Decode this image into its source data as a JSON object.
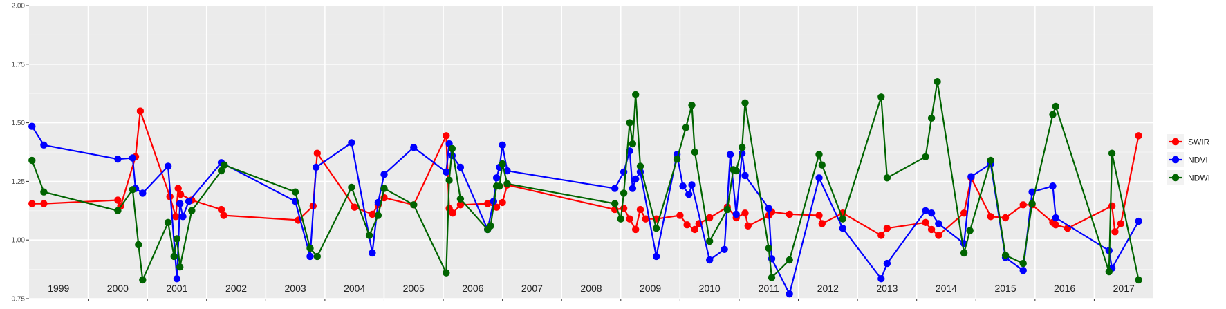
{
  "chart_data": {
    "type": "line",
    "title": "",
    "xlabel": "",
    "ylabel": "",
    "xlim": [
      1998.5,
      2017.5
    ],
    "ylim": [
      0.75,
      2.0
    ],
    "y_ticks": [
      "0.75",
      "1.00",
      "1.25",
      "1.50",
      "1.75",
      "2.00"
    ],
    "year_labels": [
      "1999",
      "2000",
      "2001",
      "2002",
      "2003",
      "2004",
      "2005",
      "2006",
      "2007",
      "2008",
      "2009",
      "2010",
      "2011",
      "2012",
      "2013",
      "2014",
      "2015",
      "2016",
      "2017"
    ],
    "grid": true,
    "legend_position": "right",
    "series": [
      {
        "name": "SWIR",
        "color": "#ff0000",
        "points": [
          [
            1998.55,
            1.155
          ],
          [
            1998.75,
            1.155
          ],
          [
            2000.0,
            1.17
          ],
          [
            2000.05,
            1.145
          ],
          [
            2000.3,
            1.355
          ],
          [
            2000.38,
            1.55
          ],
          [
            2000.88,
            1.185
          ],
          [
            2000.98,
            1.1
          ],
          [
            2001.02,
            1.22
          ],
          [
            2001.06,
            1.195
          ],
          [
            2001.25,
            1.17
          ],
          [
            2001.75,
            1.13
          ],
          [
            2001.79,
            1.105
          ],
          [
            2003.05,
            1.085
          ],
          [
            2003.3,
            1.145
          ],
          [
            2003.37,
            1.37
          ],
          [
            2004.0,
            1.14
          ],
          [
            2004.3,
            1.11
          ],
          [
            2004.4,
            1.15
          ],
          [
            2004.5,
            1.18
          ],
          [
            2005.0,
            1.15
          ],
          [
            2005.55,
            1.445
          ],
          [
            2005.6,
            1.135
          ],
          [
            2005.66,
            1.115
          ],
          [
            2005.79,
            1.15
          ],
          [
            2006.25,
            1.155
          ],
          [
            2006.4,
            1.14
          ],
          [
            2006.5,
            1.16
          ],
          [
            2006.58,
            1.235
          ],
          [
            2008.4,
            1.13
          ],
          [
            2008.55,
            1.135
          ],
          [
            2008.65,
            1.09
          ],
          [
            2008.75,
            1.045
          ],
          [
            2008.83,
            1.13
          ],
          [
            2008.92,
            1.09
          ],
          [
            2009.1,
            1.09
          ],
          [
            2009.5,
            1.105
          ],
          [
            2009.62,
            1.065
          ],
          [
            2009.75,
            1.045
          ],
          [
            2009.82,
            1.07
          ],
          [
            2010.0,
            1.095
          ],
          [
            2010.3,
            1.14
          ],
          [
            2010.45,
            1.095
          ],
          [
            2010.6,
            1.115
          ],
          [
            2010.65,
            1.06
          ],
          [
            2011.0,
            1.105
          ],
          [
            2011.05,
            1.12
          ],
          [
            2011.35,
            1.11
          ],
          [
            2011.85,
            1.105
          ],
          [
            2011.9,
            1.07
          ],
          [
            2012.25,
            1.115
          ],
          [
            2012.9,
            1.02
          ],
          [
            2013.0,
            1.05
          ],
          [
            2013.65,
            1.075
          ],
          [
            2013.75,
            1.045
          ],
          [
            2013.87,
            1.02
          ],
          [
            2014.3,
            1.115
          ],
          [
            2014.42,
            1.265
          ],
          [
            2014.75,
            1.1
          ],
          [
            2015.0,
            1.095
          ],
          [
            2015.3,
            1.15
          ],
          [
            2015.45,
            1.15
          ],
          [
            2015.8,
            1.075
          ],
          [
            2015.85,
            1.065
          ],
          [
            2016.05,
            1.05
          ],
          [
            2016.8,
            1.145
          ],
          [
            2016.85,
            1.035
          ],
          [
            2016.95,
            1.07
          ],
          [
            2017.25,
            1.445
          ]
        ]
      },
      {
        "name": "NDVI",
        "color": "#0000ff",
        "points": [
          [
            1998.55,
            1.485
          ],
          [
            1998.75,
            1.405
          ],
          [
            2000.0,
            1.345
          ],
          [
            2000.25,
            1.35
          ],
          [
            2000.3,
            1.22
          ],
          [
            2000.42,
            1.2
          ],
          [
            2000.85,
            1.315
          ],
          [
            2001.0,
            0.835
          ],
          [
            2001.05,
            1.155
          ],
          [
            2001.1,
            1.1
          ],
          [
            2001.2,
            1.165
          ],
          [
            2001.75,
            1.33
          ],
          [
            2003.0,
            1.165
          ],
          [
            2003.25,
            0.93
          ],
          [
            2003.35,
            1.31
          ],
          [
            2003.95,
            1.415
          ],
          [
            2004.3,
            0.945
          ],
          [
            2004.4,
            1.16
          ],
          [
            2004.5,
            1.28
          ],
          [
            2005.0,
            1.395
          ],
          [
            2005.55,
            1.29
          ],
          [
            2005.6,
            1.41
          ],
          [
            2005.65,
            1.36
          ],
          [
            2005.79,
            1.31
          ],
          [
            2006.25,
            1.045
          ],
          [
            2006.35,
            1.165
          ],
          [
            2006.4,
            1.265
          ],
          [
            2006.45,
            1.31
          ],
          [
            2006.5,
            1.405
          ],
          [
            2006.58,
            1.295
          ],
          [
            2008.4,
            1.22
          ],
          [
            2008.55,
            1.29
          ],
          [
            2008.65,
            1.38
          ],
          [
            2008.7,
            1.22
          ],
          [
            2008.75,
            1.26
          ],
          [
            2008.83,
            1.29
          ],
          [
            2009.1,
            0.93
          ],
          [
            2009.45,
            1.365
          ],
          [
            2009.55,
            1.23
          ],
          [
            2009.65,
            1.195
          ],
          [
            2009.7,
            1.235
          ],
          [
            2010.0,
            0.915
          ],
          [
            2010.25,
            0.96
          ],
          [
            2010.35,
            1.365
          ],
          [
            2010.45,
            1.11
          ],
          [
            2010.55,
            1.37
          ],
          [
            2010.6,
            1.275
          ],
          [
            2011.0,
            1.135
          ],
          [
            2011.05,
            0.92
          ],
          [
            2011.35,
            0.77
          ],
          [
            2011.85,
            1.265
          ],
          [
            2012.25,
            1.05
          ],
          [
            2012.9,
            0.835
          ],
          [
            2013.0,
            0.9
          ],
          [
            2013.65,
            1.125
          ],
          [
            2013.75,
            1.115
          ],
          [
            2013.87,
            1.07
          ],
          [
            2014.3,
            0.985
          ],
          [
            2014.42,
            1.27
          ],
          [
            2014.75,
            1.325
          ],
          [
            2015.0,
            0.925
          ],
          [
            2015.3,
            0.87
          ],
          [
            2015.45,
            1.205
          ],
          [
            2015.8,
            1.23
          ],
          [
            2015.85,
            1.095
          ],
          [
            2016.75,
            0.955
          ],
          [
            2016.8,
            0.88
          ],
          [
            2017.25,
            1.08
          ]
        ]
      },
      {
        "name": "NDWI",
        "color": "#006400",
        "points": [
          [
            1998.55,
            1.34
          ],
          [
            1998.75,
            1.205
          ],
          [
            2000.0,
            1.125
          ],
          [
            2000.25,
            1.215
          ],
          [
            2000.35,
            0.98
          ],
          [
            2000.42,
            0.83
          ],
          [
            2000.85,
            1.075
          ],
          [
            2000.95,
            0.93
          ],
          [
            2001.0,
            1.005
          ],
          [
            2001.05,
            0.885
          ],
          [
            2001.25,
            1.125
          ],
          [
            2001.75,
            1.295
          ],
          [
            2001.8,
            1.32
          ],
          [
            2003.0,
            1.205
          ],
          [
            2003.25,
            0.965
          ],
          [
            2003.37,
            0.93
          ],
          [
            2003.95,
            1.225
          ],
          [
            2004.25,
            1.02
          ],
          [
            2004.4,
            1.105
          ],
          [
            2004.5,
            1.22
          ],
          [
            2005.0,
            1.15
          ],
          [
            2005.55,
            0.86
          ],
          [
            2005.6,
            1.255
          ],
          [
            2005.65,
            1.39
          ],
          [
            2005.79,
            1.175
          ],
          [
            2006.25,
            1.045
          ],
          [
            2006.3,
            1.06
          ],
          [
            2006.4,
            1.23
          ],
          [
            2006.45,
            1.23
          ],
          [
            2006.5,
            1.325
          ],
          [
            2006.58,
            1.24
          ],
          [
            2008.4,
            1.155
          ],
          [
            2008.5,
            1.09
          ],
          [
            2008.55,
            1.2
          ],
          [
            2008.65,
            1.5
          ],
          [
            2008.7,
            1.41
          ],
          [
            2008.75,
            1.62
          ],
          [
            2008.83,
            1.315
          ],
          [
            2009.1,
            1.05
          ],
          [
            2009.45,
            1.345
          ],
          [
            2009.6,
            1.48
          ],
          [
            2009.7,
            1.575
          ],
          [
            2009.75,
            1.375
          ],
          [
            2010.0,
            0.995
          ],
          [
            2010.3,
            1.13
          ],
          [
            2010.4,
            1.3
          ],
          [
            2010.45,
            1.295
          ],
          [
            2010.55,
            1.395
          ],
          [
            2010.6,
            1.585
          ],
          [
            2011.0,
            0.965
          ],
          [
            2011.05,
            0.84
          ],
          [
            2011.35,
            0.915
          ],
          [
            2011.85,
            1.365
          ],
          [
            2011.9,
            1.32
          ],
          [
            2012.25,
            1.09
          ],
          [
            2012.9,
            1.61
          ],
          [
            2013.0,
            1.265
          ],
          [
            2013.65,
            1.355
          ],
          [
            2013.75,
            1.52
          ],
          [
            2013.85,
            1.675
          ],
          [
            2014.3,
            0.945
          ],
          [
            2014.4,
            1.04
          ],
          [
            2014.75,
            1.34
          ],
          [
            2015.0,
            0.935
          ],
          [
            2015.3,
            0.9
          ],
          [
            2015.45,
            1.155
          ],
          [
            2015.8,
            1.535
          ],
          [
            2015.85,
            1.57
          ],
          [
            2016.75,
            0.865
          ],
          [
            2016.8,
            1.37
          ],
          [
            2017.25,
            0.83
          ]
        ]
      }
    ]
  }
}
